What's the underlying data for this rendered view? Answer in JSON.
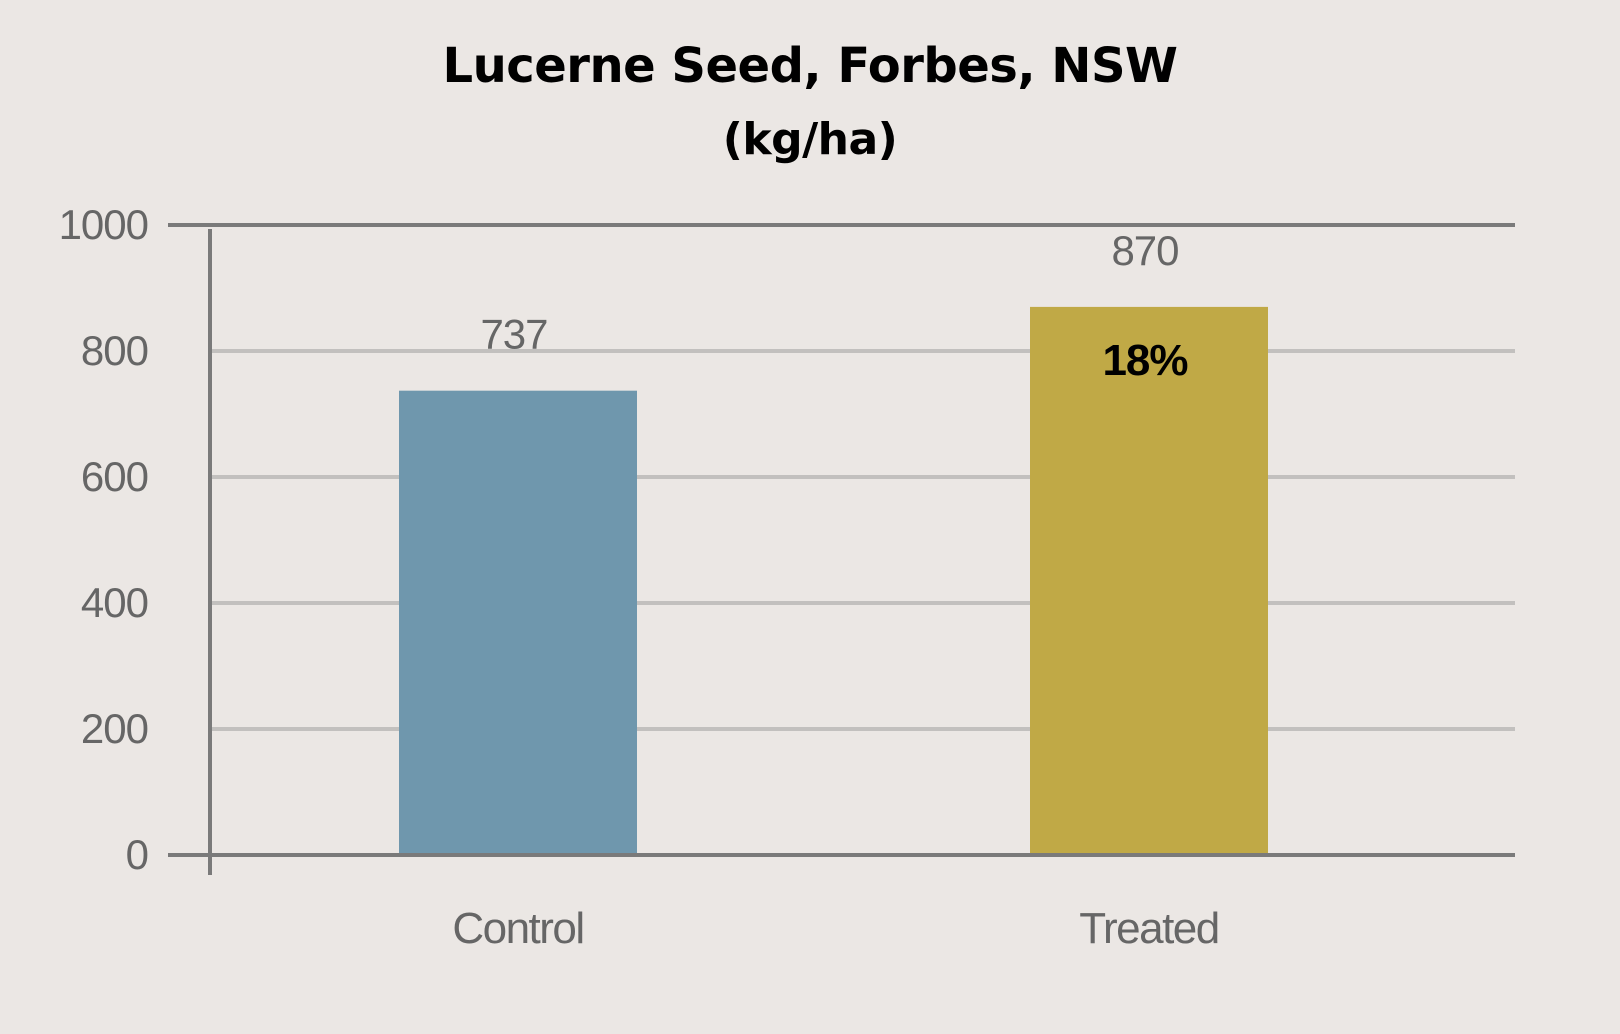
{
  "chart_data": {
    "type": "bar",
    "title": "Lucerne Seed, Forbes, NSW",
    "subtitle": "(kg/ha)",
    "categories": [
      "Control",
      "Treated"
    ],
    "values": [
      737,
      870
    ],
    "data_labels": [
      "737",
      "870"
    ],
    "annotations": [
      {
        "category": "Treated",
        "text": "18%"
      }
    ],
    "y_ticks": [
      "0",
      "200",
      "400",
      "600",
      "800",
      "1000"
    ],
    "ylim": [
      0,
      1000
    ],
    "grid": true,
    "legend": "none",
    "xlabel": "",
    "ylabel": ""
  },
  "colors": {
    "background": "#ebe7e4",
    "control_bar": "#6f97ad",
    "treated_bar": "#c0a946",
    "gridline": "#c2c0be",
    "axis": "#7a7a7a",
    "tick_text": "#666666",
    "annotation_text": "#000000"
  }
}
